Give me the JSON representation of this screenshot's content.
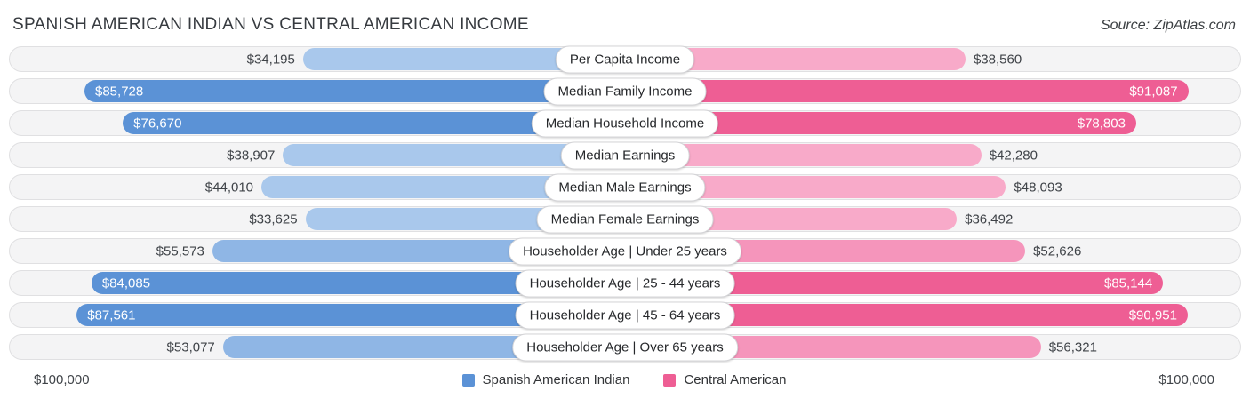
{
  "header": {
    "title": "SPANISH AMERICAN INDIAN VS CENTRAL AMERICAN INCOME",
    "source": "Source: ZipAtlas.com"
  },
  "chart_data": {
    "type": "bar",
    "orientation": "horizontal-diverging",
    "axis_max": 100000,
    "axis_max_label": "$100,000",
    "legend_position": "bottom-center",
    "legend": [
      {
        "name": "Spanish American Indian",
        "color": "#5b92d6"
      },
      {
        "name": "Central American",
        "color": "#ee5e94"
      }
    ],
    "categories": [
      "Per Capita Income",
      "Median Family Income",
      "Median Household Income",
      "Median Earnings",
      "Median Male Earnings",
      "Median Female Earnings",
      "Householder Age | Under 25 years",
      "Householder Age | 25 - 44 years",
      "Householder Age | 45 - 64 years",
      "Householder Age | Over 65 years"
    ],
    "series": [
      {
        "name": "Spanish American Indian",
        "values": [
          34195,
          85728,
          76670,
          38907,
          44010,
          33625,
          55573,
          84085,
          87561,
          53077
        ]
      },
      {
        "name": "Central American",
        "values": [
          38560,
          91087,
          78803,
          42280,
          48093,
          36492,
          52626,
          85144,
          90951,
          56321
        ]
      }
    ],
    "rows": [
      {
        "category": "Per Capita Income",
        "left": 34195,
        "left_label": "$34,195",
        "right": 38560,
        "right_label": "$38,560",
        "shade": "light"
      },
      {
        "category": "Median Family Income",
        "left": 85728,
        "left_label": "$85,728",
        "right": 91087,
        "right_label": "$91,087",
        "shade": "dark"
      },
      {
        "category": "Median Household Income",
        "left": 76670,
        "left_label": "$76,670",
        "right": 78803,
        "right_label": "$78,803",
        "shade": "dark"
      },
      {
        "category": "Median Earnings",
        "left": 38907,
        "left_label": "$38,907",
        "right": 42280,
        "right_label": "$42,280",
        "shade": "light"
      },
      {
        "category": "Median Male Earnings",
        "left": 44010,
        "left_label": "$44,010",
        "right": 48093,
        "right_label": "$48,093",
        "shade": "light"
      },
      {
        "category": "Median Female Earnings",
        "left": 33625,
        "left_label": "$33,625",
        "right": 36492,
        "right_label": "$36,492",
        "shade": "light"
      },
      {
        "category": "Householder Age | Under 25 years",
        "left": 55573,
        "left_label": "$55,573",
        "right": 52626,
        "right_label": "$52,626",
        "shade": "medium"
      },
      {
        "category": "Householder Age | 25 - 44 years",
        "left": 84085,
        "left_label": "$84,085",
        "right": 85144,
        "right_label": "$85,144",
        "shade": "dark"
      },
      {
        "category": "Householder Age | 45 - 64 years",
        "left": 87561,
        "left_label": "$87,561",
        "right": 90951,
        "right_label": "$90,951",
        "shade": "dark"
      },
      {
        "category": "Householder Age | Over 65 years",
        "left": 53077,
        "left_label": "$53,077",
        "right": 56321,
        "right_label": "$56,321",
        "shade": "medium"
      }
    ],
    "colors": {
      "left": {
        "light": "#a9c8ec",
        "medium": "#8fb6e5",
        "dark": "#5b92d6"
      },
      "right": {
        "light": "#f8aac9",
        "medium": "#f595bb",
        "dark": "#ee5e94"
      }
    }
  },
  "footer": {
    "left_axis_label": "$100,000",
    "right_axis_label": "$100,000"
  }
}
